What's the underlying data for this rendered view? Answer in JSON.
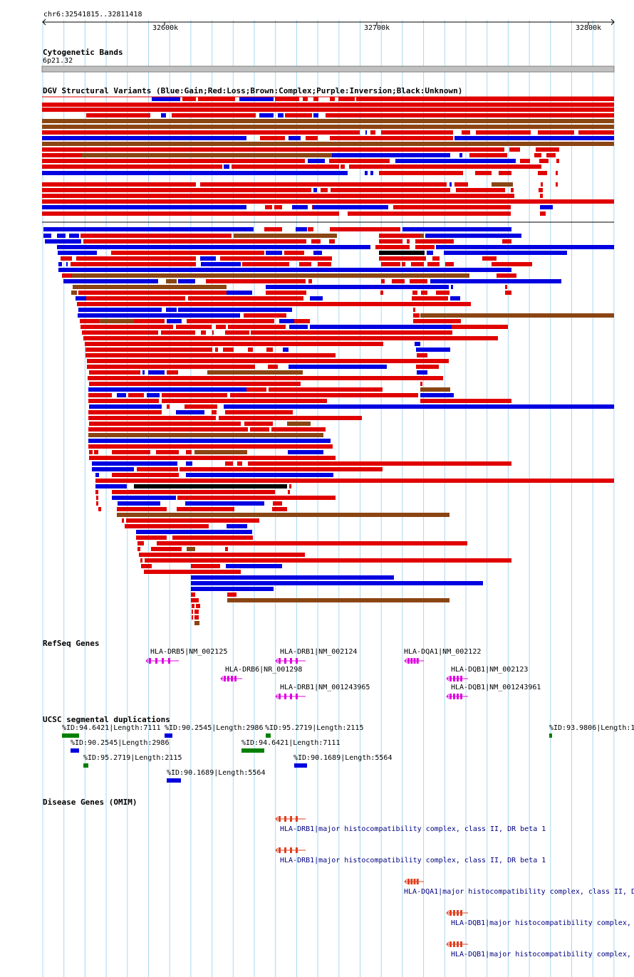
{
  "coords": "chr6:32541815..32811418",
  "ticks": [
    "32600k",
    "32700k",
    "32800k"
  ],
  "tracks": {
    "cyto": {
      "title": "Cytogenetic Bands",
      "band": "6p21.32"
    },
    "dgv": {
      "title": "DGV Structural Variants (Blue:Gain;Red:Loss;Brown:Complex;Purple:Inversion;Black:Unknown)"
    },
    "refseq": {
      "title": "RefSeq Genes",
      "genes": [
        "HLA-DRB5|NM_002125",
        "HLA-DRB1|NM_002124",
        "HLA-DQA1|NM_002122",
        "HLA-DRB6|NR_001298",
        "HLA-DQB1|NM_002123",
        "HLA-DRB1|NM_001243965",
        "HLA-DQB1|NM_001243961"
      ]
    },
    "segdup": {
      "title": "UCSC segmental duplications",
      "items": [
        "%ID:94.6421|Length:7111",
        "%ID:90.2545|Length:2986",
        "%ID:95.2719|Length:2115",
        "%ID:93.9806|Length:1",
        "%ID:90.2545|Length:2986",
        "%ID:94.6421|Length:7111",
        "%ID:95.2719|Length:2115",
        "%ID:90.1689|Length:5564",
        "%ID:90.1689|Length:5564"
      ]
    },
    "omim": {
      "title": "Disease Genes (OMIM)",
      "items": [
        "HLA-DRB1|major histocompatibility complex, class II, DR beta 1",
        "HLA-DRB1|major histocompatibility complex, class II, DR beta 1",
        "HLA-DQA1|major histocompatibility complex, class II, D",
        "HLA-DQB1|major histocompatibility complex,",
        "HLA-DQB1|major histocompatibility complex,"
      ]
    }
  },
  "colors": {
    "gain": "#0000e0",
    "loss": "#e00000",
    "complex": "#8b4513",
    "unknown": "#000000",
    "gene": "#e000e0",
    "segdup_green": "#008000",
    "segdup_blue": "#0000e0",
    "omim": "#e04020",
    "grid": "#a8d8f0"
  }
}
